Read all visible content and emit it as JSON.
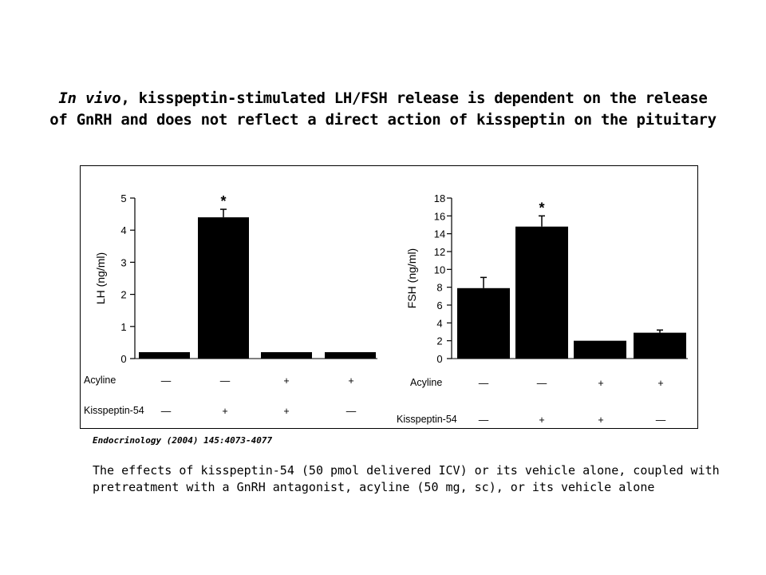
{
  "title": {
    "italic_part": "In vivo",
    "line1_rest": ", kisspeptin-stimulated LH/FSH release is dependent on the release",
    "line2": "of GnRH and does not reflect a direct action of kisspeptin on the pituitary"
  },
  "citation": "Endocrinology (2004) 145:4073-4077",
  "caption": {
    "line1": "The effects of kisspeptin-54 (50 pmol delivered ICV) or its vehicle alone, coupled with",
    "line2": "pretreatment with a GnRH antagonist, acyline (50 mg, sc), or its vehicle alone"
  },
  "chart_data": [
    {
      "type": "bar",
      "ylabel": "LH (ng/ml)",
      "ylim": [
        0,
        5
      ],
      "yticks": [
        0,
        1,
        2,
        3,
        4,
        5
      ],
      "values": [
        0.2,
        4.4,
        0.2,
        0.2
      ],
      "errors": [
        0,
        0.25,
        0,
        0
      ],
      "significance": [
        "",
        "*",
        "",
        ""
      ],
      "rows": [
        {
          "label": "Acyline",
          "marks": [
            "—",
            "—",
            "+",
            "+"
          ]
        },
        {
          "label": "Kisspeptin-54",
          "marks": [
            "—",
            "+",
            "+",
            "—"
          ]
        }
      ]
    },
    {
      "type": "bar",
      "ylabel": "FSH (ng/ml)",
      "ylim": [
        0,
        18
      ],
      "yticks": [
        0,
        2,
        4,
        6,
        8,
        10,
        12,
        14,
        16,
        18
      ],
      "values": [
        7.9,
        14.8,
        2.0,
        2.9
      ],
      "errors": [
        1.2,
        1.2,
        0,
        0.3
      ],
      "significance": [
        "",
        "*",
        "",
        ""
      ],
      "rows": [
        {
          "label": "Acyline",
          "marks": [
            "—",
            "—",
            "+",
            "+"
          ]
        },
        {
          "label": "Kisspeptin-54",
          "marks": [
            "—",
            "+",
            "+",
            "—"
          ]
        }
      ]
    }
  ]
}
